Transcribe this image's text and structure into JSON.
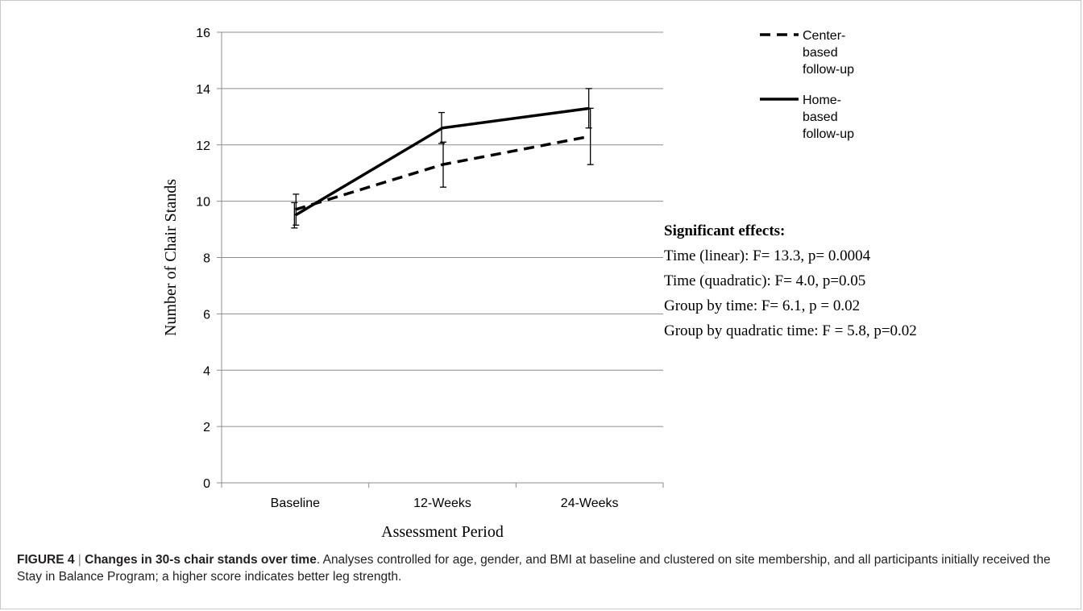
{
  "caption": {
    "label": "FIGURE 4",
    "separator": " | ",
    "title": "Changes in 30-s chair stands over time",
    "text": ". Analyses controlled for age, gender, and BMI at baseline and clustered on site membership, and all participants initially received the Stay in Balance Program; a higher score indicates better leg strength."
  },
  "effects": {
    "title": "Significant effects:",
    "lines": [
      "Time (linear): F= 13.3, p= 0.0004",
      "Time (quadratic): F= 4.0, p=0.05",
      "Group by time: F= 6.1, p = 0.02",
      "Group by quadratic time: F = 5.8, p=0.02"
    ]
  },
  "chart_data": {
    "type": "line",
    "title": "",
    "xlabel": "Assessment Period",
    "ylabel": "Number of Chair Stands",
    "categories": [
      "Baseline",
      "12-Weeks",
      "24-Weeks"
    ],
    "ylim": [
      0,
      16
    ],
    "yticks": [
      0,
      2,
      4,
      6,
      8,
      10,
      12,
      14,
      16
    ],
    "grid": true,
    "legend_position": "top-right",
    "series": [
      {
        "name": "Center-based follow-up",
        "legend_lines": [
          "Center-",
          "based",
          "follow-up"
        ],
        "style": "dashed",
        "color": "#000000",
        "values": [
          9.7,
          11.3,
          12.3
        ],
        "error": [
          0.55,
          0.8,
          1.0
        ]
      },
      {
        "name": "Home-based follow-up",
        "legend_lines": [
          "Home-",
          "based",
          "follow-up"
        ],
        "style": "solid",
        "color": "#000000",
        "values": [
          9.5,
          12.6,
          13.3
        ],
        "error": [
          0.45,
          0.55,
          0.7
        ]
      }
    ]
  }
}
